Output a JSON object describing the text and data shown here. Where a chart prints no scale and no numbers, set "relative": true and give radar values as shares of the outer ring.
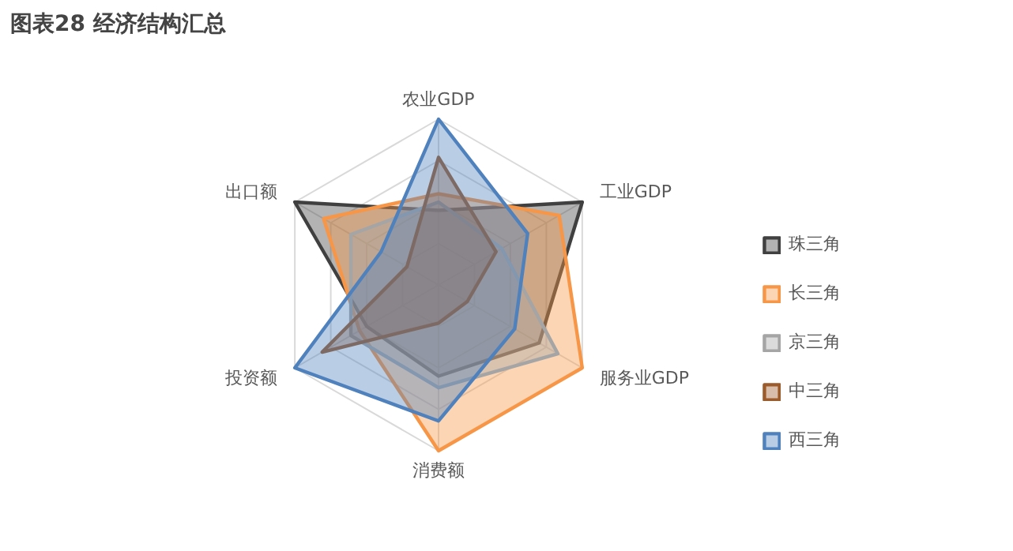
{
  "chart_data": {
    "type": "radar",
    "title": "图表28    经济结构汇总",
    "relative": true,
    "grid": true,
    "legend": "right",
    "categories": [
      "农业GDP",
      "工业GDP",
      "服务业GDP",
      "消费额",
      "投资额",
      "出口额"
    ],
    "series": [
      {
        "name": "珠三角",
        "color": "#404040",
        "values": [
          0.45,
          1.0,
          0.7,
          0.55,
          0.5,
          1.0
        ]
      },
      {
        "name": "长三角",
        "color": "#f79646",
        "values": [
          0.55,
          0.84,
          1.0,
          1.0,
          0.55,
          0.8
        ]
      },
      {
        "name": "京三角",
        "color": "#a5a5a5",
        "values": [
          0.5,
          0.44,
          0.83,
          0.62,
          0.61,
          0.61
        ]
      },
      {
        "name": "中三角",
        "color": "#9c5b2a",
        "values": [
          0.77,
          0.4,
          0.2,
          0.23,
          0.81,
          0.22
        ]
      },
      {
        "name": "西三角",
        "color": "#4f81bd",
        "values": [
          1.0,
          0.62,
          0.53,
          0.82,
          1.0,
          0.4
        ]
      }
    ]
  }
}
